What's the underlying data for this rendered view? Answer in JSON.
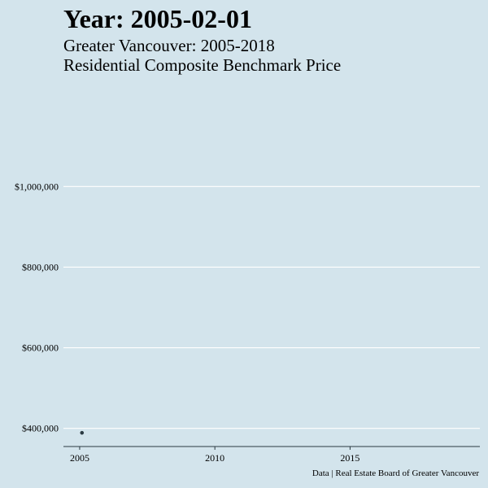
{
  "title": "Year: 2005-02-01",
  "subtitle_line1": "Greater Vancouver: 2005-2018",
  "subtitle_line2": "Residential Composite Benchmark Price",
  "caption": "Data | Real Estate Board of Greater Vancouver",
  "colors": {
    "background": "#d3e4ec",
    "gridline": "#ffffff",
    "axis": "#2b3a42",
    "point": "#2b3a42"
  },
  "chart_data": {
    "type": "scatter",
    "title": "Year: 2005-02-01",
    "subtitle": "Greater Vancouver: 2005-2018 — Residential Composite Benchmark Price",
    "xlabel": "",
    "ylabel": "",
    "x_ticks": [
      2005,
      2010,
      2015
    ],
    "y_ticks": [
      400000,
      600000,
      800000,
      1000000
    ],
    "y_tick_labels": [
      "$400,000",
      "$600,000",
      "$800,000",
      "$1,000,000"
    ],
    "xlim": [
      2004.4,
      2019.8
    ],
    "ylim": [
      355000,
      1160000
    ],
    "grid": "horizontal",
    "series": [
      {
        "points": [
          {
            "x": "2005-02-01",
            "y": 389000
          }
        ]
      }
    ]
  }
}
